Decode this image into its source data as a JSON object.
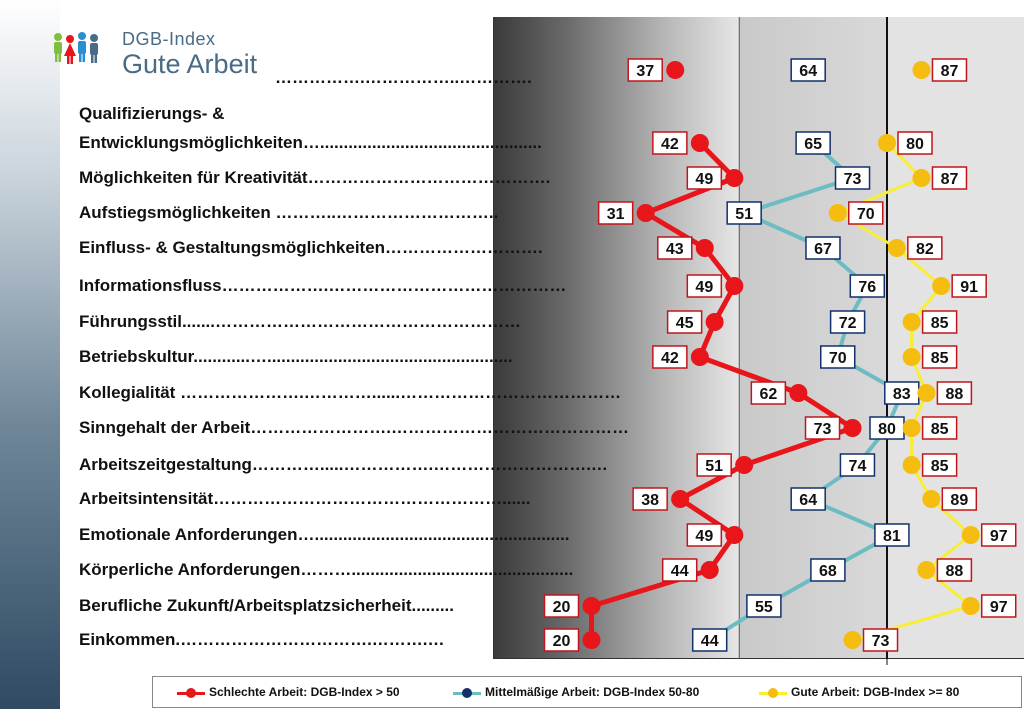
{
  "logo": {
    "title_small": "DGB-Index",
    "title_large": "Gute Arbeit"
  },
  "colors": {
    "schlecht": "#e8151b",
    "mittel": "#6dbcc4",
    "gut": "#f8ee33",
    "mittel_dot": "#12306b",
    "gut_dot": "#f5bd10"
  },
  "overall": {
    "schlecht": "37",
    "mittel": "64",
    "gut": "87"
  },
  "chart_data": {
    "type": "line",
    "orientation": "horizontal",
    "categories": [
      "Qualifizierungs- & Entwicklungsmöglichkeiten",
      "Möglichkeiten für Kreativität",
      "Aufstiegsmöglichkeiten",
      "Einfluss- & Gestaltungsmöglichkeiten",
      "Informationsfluss",
      "Führungsstil",
      "Betriebskultur",
      "Kollegialität",
      "Sinngehalt der Arbeit",
      "Arbeitszeitgestaltung",
      "Arbeitsintensität",
      "Emotionale Anforderungen",
      "Körperliche Anforderungen",
      "Berufliche Zukunft/Arbeitsplatzsicherheit",
      "Einkommen"
    ],
    "category_labels": [
      [
        "Qualifizierungs- &",
        "Entwicklungsmöglichkeiten…..............................................."
      ],
      [
        "Möglichkeiten für Kreativität……………………………………."
      ],
      [
        "Aufstiegsmöglichkeiten ………..……………………….."
      ],
      [
        "Einfluss- & Gestaltungsmöglichkeiten………………………."
      ],
      [
        "Informationsfluss……………….……………………………………"
      ],
      [
        "Führungsstil.......………………………………………………"
      ],
      [
        "Betriebskultur............…...................................................."
      ],
      [
        "Kollegialität ………………….…………......…………………………………"
      ],
      [
        "Sinngehalt der Arbeit…………………….……………………………………"
      ],
      [
        "Arbeitszeitgestaltung………….....…………….……………………….…"
      ],
      [
        "Arbeitsintensität……………………………………………......"
      ],
      [
        "Emotionale Anforderungen…......................................................"
      ],
      [
        "Körperliche Anforderungen………..............................................."
      ],
      [
        "Berufliche Zukunft/Arbeitsplatzsicherheit........."
      ],
      [
        "Einkommen.…………………………….……….…"
      ]
    ],
    "header_leader": "…………….……………..………….",
    "series": [
      {
        "name": "Schlechte Arbeit: DGB-Index > 50",
        "values": [
          42,
          49,
          31,
          43,
          49,
          45,
          42,
          62,
          73,
          51,
          38,
          49,
          44,
          20,
          20
        ]
      },
      {
        "name": "Mittelmäßige Arbeit: DGB-Index 50-80",
        "values": [
          65,
          73,
          51,
          67,
          76,
          72,
          70,
          83,
          80,
          74,
          64,
          81,
          68,
          55,
          44
        ]
      },
      {
        "name": "Gute Arbeit: DGB-Index >= 80",
        "values": [
          80,
          87,
          70,
          82,
          91,
          85,
          85,
          88,
          85,
          85,
          89,
          97,
          88,
          97,
          73
        ]
      }
    ],
    "xlim": [
      0,
      100
    ],
    "reference_lines": [
      50,
      80
    ],
    "grid": false,
    "legend": "bottom"
  }
}
